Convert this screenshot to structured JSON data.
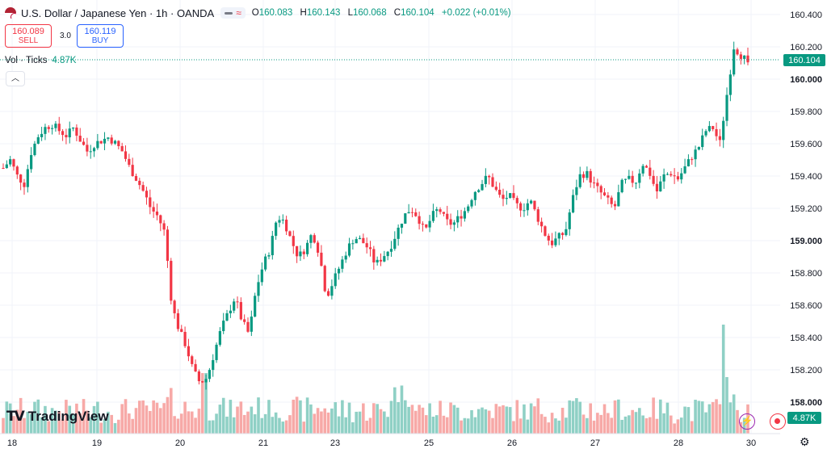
{
  "header": {
    "symbol": "U.S. Dollar / Japanese Yen · 1h · OANDA",
    "ohlc": {
      "o_label": "O",
      "o": "160.083",
      "h_label": "H",
      "h": "160.143",
      "l_label": "L",
      "l": "160.068",
      "c_label": "C",
      "c": "160.104",
      "change": "+0.022 (+0.01%)"
    }
  },
  "trade": {
    "sell_price": "160.089",
    "sell_label": "SELL",
    "spread": "3.0",
    "buy_price": "160.119",
    "buy_label": "BUY"
  },
  "volume": {
    "label": "Vol · Ticks",
    "value": "4.87K"
  },
  "brand": {
    "logo_text": "TradingView"
  },
  "colors": {
    "up": "#089981",
    "down": "#f23645",
    "up_vol": "#8fd0c5",
    "down_vol": "#f7a9a7",
    "grid": "#f0f3fa"
  },
  "icons": [
    "flag-icon",
    "collapse-chevron-icon",
    "bolt-icon",
    "record-icon",
    "gear-icon"
  ],
  "chart_data": {
    "type": "candlestick",
    "x_ticks": [
      "18",
      "19",
      "20",
      "21",
      "23",
      "25",
      "26",
      "27",
      "28",
      "30"
    ],
    "y_ticks": [
      "160.400",
      "160.200",
      "160.000",
      "159.800",
      "159.600",
      "159.400",
      "159.200",
      "159.000",
      "158.800",
      "158.600",
      "158.400",
      "158.200",
      "158.000"
    ],
    "ylim": [
      157.95,
      160.45
    ],
    "last_price": "160.104",
    "volume_last": "4.87K",
    "close_path": [
      159.45,
      159.5,
      159.4,
      159.35,
      159.55,
      159.65,
      159.7,
      159.72,
      159.68,
      159.65,
      159.7,
      159.62,
      159.55,
      159.6,
      159.62,
      159.64,
      159.6,
      159.55,
      159.45,
      159.38,
      159.3,
      159.2,
      159.15,
      159.05,
      158.6,
      158.45,
      158.35,
      158.2,
      158.12,
      158.15,
      158.3,
      158.45,
      158.55,
      158.65,
      158.5,
      158.42,
      158.7,
      158.85,
      158.95,
      159.15,
      159.12,
      159.0,
      158.9,
      158.95,
      159.05,
      158.92,
      158.65,
      158.75,
      158.85,
      158.95,
      159.02,
      159.0,
      158.95,
      158.85,
      158.9,
      158.95,
      159.05,
      159.15,
      159.2,
      159.15,
      159.05,
      159.15,
      159.2,
      159.12,
      159.1,
      159.15,
      159.2,
      159.3,
      159.35,
      159.4,
      159.32,
      159.25,
      159.28,
      159.22,
      159.2,
      159.25,
      159.15,
      159.05,
      158.98,
      159.02,
      159.05,
      159.25,
      159.4,
      159.42,
      159.35,
      159.3,
      159.25,
      159.2,
      159.35,
      159.38,
      159.36,
      159.48,
      159.42,
      159.3,
      159.4,
      159.42,
      159.38,
      159.45,
      159.52,
      159.58,
      159.68,
      159.7,
      159.6,
      159.9,
      160.2,
      160.15,
      160.104
    ]
  }
}
